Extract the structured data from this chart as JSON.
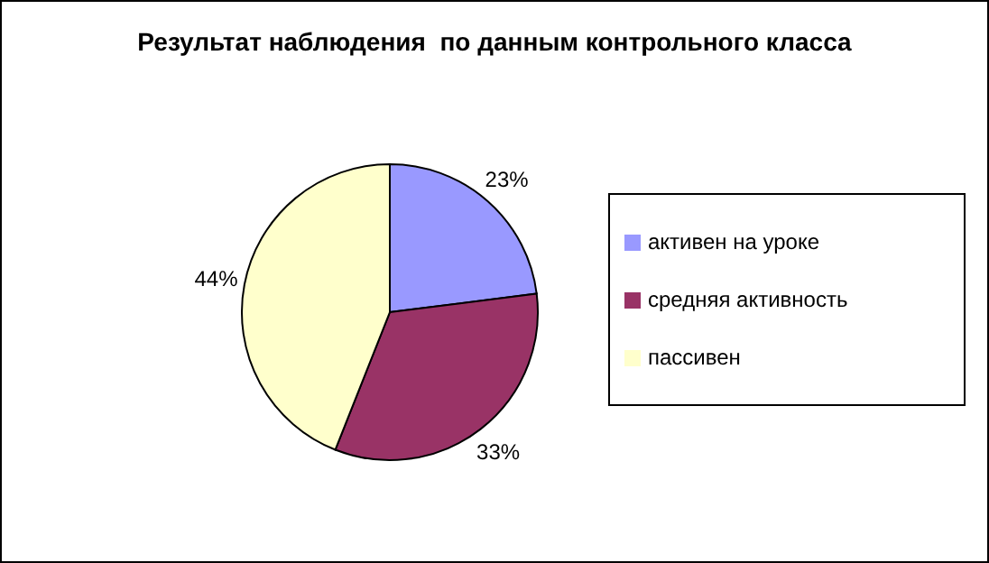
{
  "chart_data": {
    "type": "pie",
    "title": "Результат наблюдения  по данным контрольного класса",
    "categories": [
      "активен на уроке",
      "средняя активность",
      "пассивен"
    ],
    "values": [
      23,
      33,
      44
    ],
    "colors": [
      "#9999ff",
      "#993366",
      "#ffffcc"
    ],
    "value_labels": [
      "23%",
      "33%",
      "44%"
    ],
    "legend": "right"
  }
}
